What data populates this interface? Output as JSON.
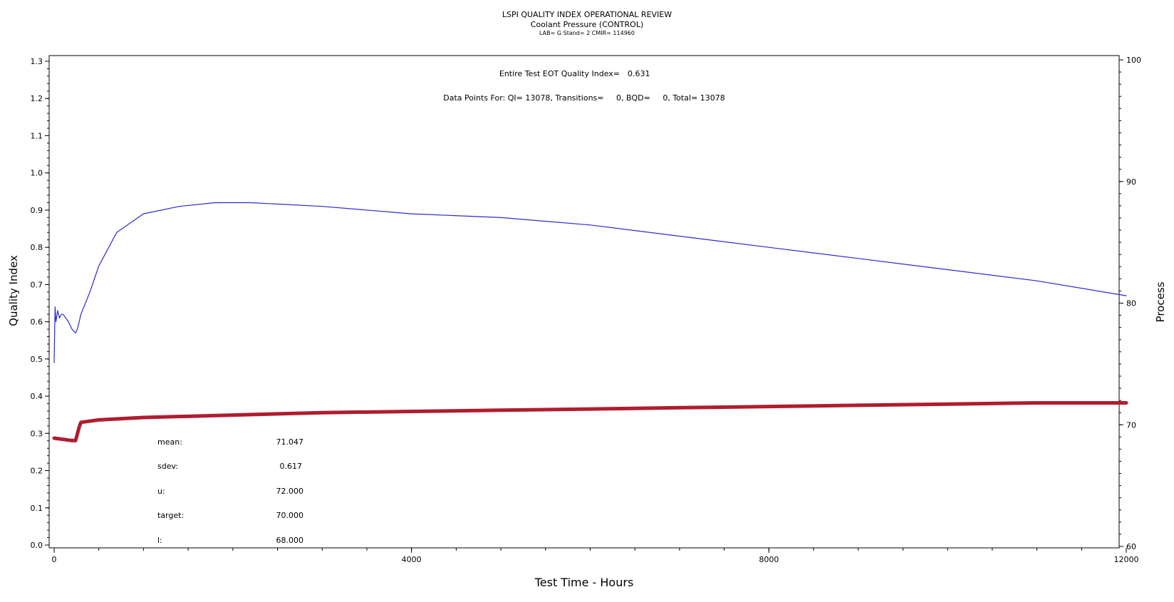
{
  "header": {
    "title": "LSPI QUALITY INDEX OPERATIONAL REVIEW",
    "subtitle": "Coolant Pressure (CONTROL)",
    "sub_info": "LAB= G Stand= 2 CMIR= 114960"
  },
  "annotations": {
    "eot_label": "Entire Test EOT Quality Index=",
    "eot_value": "0.631",
    "data_points": "Data Points For: QI= 13078, Transitions=     0, BQD=     0, Total= 13078"
  },
  "stats": [
    {
      "label": "mean:",
      "value": "71.047"
    },
    {
      "label": "sdev:",
      "value": "0.617"
    },
    {
      "label": "u:",
      "value": "72.000"
    },
    {
      "label": "target:",
      "value": "70.000"
    },
    {
      "label": "l:",
      "value": "68.000"
    }
  ],
  "colors": {
    "quality_index_line": "#2a2ad0",
    "process_line": "#b01c2e"
  },
  "chart_data": {
    "type": "line",
    "xlabel": "Test Time - Hours",
    "ylabel": "Quality Index",
    "y2label": "Process",
    "xlim": [
      0,
      12000
    ],
    "ylim": [
      0,
      1.3
    ],
    "y2lim": [
      60,
      100
    ],
    "x_ticks": [
      "0",
      "4000",
      "8000",
      "12000"
    ],
    "y_ticks": [
      "0.0",
      "0.1",
      "0.2",
      "0.3",
      "0.4",
      "0.5",
      "0.6",
      "0.7",
      "0.8",
      "0.9",
      "1.0",
      "1.1",
      "1.2",
      "1.3"
    ],
    "y2_ticks": [
      "60",
      "70",
      "80",
      "90",
      "100"
    ],
    "series": [
      {
        "axis": "left",
        "x": [
          0,
          10,
          20,
          40,
          60,
          80,
          100,
          130,
          160,
          200,
          240,
          260,
          300,
          400,
          500,
          700,
          1000,
          1400,
          1800,
          2200,
          3000,
          4000,
          5000,
          6000,
          7000,
          8000,
          9000,
          10000,
          11000,
          12000
        ],
        "values": [
          0.49,
          0.64,
          0.6,
          0.63,
          0.61,
          0.62,
          0.62,
          0.61,
          0.6,
          0.58,
          0.57,
          0.58,
          0.62,
          0.68,
          0.75,
          0.84,
          0.89,
          0.91,
          0.92,
          0.92,
          0.91,
          0.89,
          0.88,
          0.86,
          0.83,
          0.8,
          0.77,
          0.74,
          0.71,
          0.67
        ]
      },
      {
        "axis": "right",
        "x": [
          0,
          100,
          200,
          240,
          280,
          300,
          500,
          1000,
          2000,
          3000,
          4000,
          5000,
          6000,
          7000,
          8000,
          9000,
          10000,
          11000,
          12000
        ],
        "values": [
          68.9,
          68.8,
          68.7,
          68.7,
          69.8,
          70.2,
          70.4,
          70.6,
          70.8,
          71.0,
          71.1,
          71.2,
          71.3,
          71.4,
          71.5,
          71.6,
          71.7,
          71.8,
          71.8
        ]
      }
    ]
  }
}
